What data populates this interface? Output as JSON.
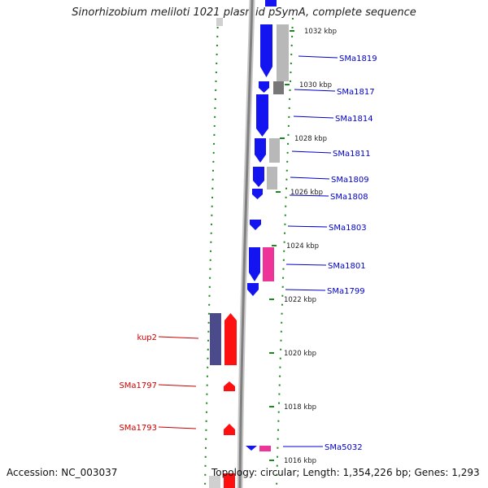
{
  "header": {
    "title": "Sinorhizobium meliloti 1021 plasmid pSymA, complete sequence"
  },
  "footer": {
    "accession": "Accession: NC_003037",
    "summary": "Topology: circular; Length: 1,354,226 bp; Genes: 1,293"
  },
  "scale_ticks": [
    {
      "label": "1032 kbp",
      "kbp": 1032
    },
    {
      "label": "1030 kbp",
      "kbp": 1030
    },
    {
      "label": "1028 kbp",
      "kbp": 1028
    },
    {
      "label": "1026 kbp",
      "kbp": 1026
    },
    {
      "label": "1024 kbp",
      "kbp": 1024
    },
    {
      "label": "1022 kbp",
      "kbp": 1022
    },
    {
      "label": "1020 kbp",
      "kbp": 1020
    },
    {
      "label": "1018 kbp",
      "kbp": 1018
    },
    {
      "label": "1016 kbp",
      "kbp": 1016
    }
  ],
  "genes_forward": [
    {
      "label": "SMa1819",
      "color": "#0000cc"
    },
    {
      "label": "SMa1817",
      "color": "#0000cc"
    },
    {
      "label": "SMa1814",
      "color": "#0000cc"
    },
    {
      "label": "SMa1811",
      "color": "#0000cc"
    },
    {
      "label": "SMa1809",
      "color": "#0000cc"
    },
    {
      "label": "SMa1808",
      "color": "#0000cc"
    },
    {
      "label": "SMa1803",
      "color": "#0000cc"
    },
    {
      "label": "SMa1801",
      "color": "#0000cc"
    },
    {
      "label": "SMa1799",
      "color": "#0000cc"
    },
    {
      "label": "SMa5032",
      "color": "#0000cc"
    }
  ],
  "genes_reverse": [
    {
      "label": "kup2",
      "color": "#cc0000"
    },
    {
      "label": "SMa1797",
      "color": "#cc0000"
    },
    {
      "label": "SMa1793",
      "color": "#cc0000"
    }
  ],
  "colors": {
    "forward_cds": "#1414f0",
    "reverse_cds": "#ff1010",
    "similarity_magenta": "#ee3399",
    "similarity_gray": "#b4b4b4",
    "similarity_navy": "#4b4b8c",
    "backbone": "#808080",
    "gc_dots": "#1a8a1a"
  }
}
